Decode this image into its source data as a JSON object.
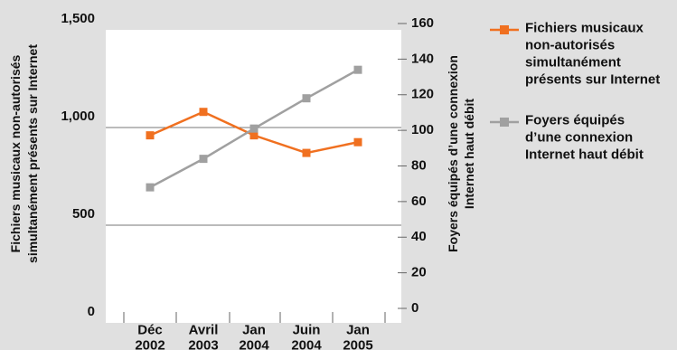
{
  "chart_data": {
    "type": "line",
    "categories": [
      [
        "Déc",
        "2002"
      ],
      [
        "Avril",
        "2003"
      ],
      [
        "Jan",
        "2004"
      ],
      [
        "Juin",
        "2004"
      ],
      [
        "Jan",
        "2005"
      ]
    ],
    "left_axis": {
      "title_lines": [
        "Fichiers musicaux non-autorisés",
        "simultanément présents sur Internet"
      ],
      "ticks": [
        0,
        500,
        1000,
        1500
      ],
      "tick_labels": [
        "0",
        "500",
        "1,000",
        "1,500"
      ],
      "ylim": [
        0,
        1500
      ]
    },
    "right_axis": {
      "title_lines": [
        "Foyers équipés d’une connexion",
        "Internet haut débit"
      ],
      "ticks": [
        0,
        20,
        40,
        60,
        80,
        100,
        120,
        140,
        160
      ],
      "tick_labels": [
        "0",
        "20",
        "40",
        "60",
        "80",
        "100",
        "120",
        "140",
        "160"
      ],
      "ylim": [
        0,
        160
      ]
    },
    "series": [
      {
        "name_lines": [
          "Fichiers musicaux",
          "non-autorisés",
          "simultanément",
          "présents sur Internet"
        ],
        "axis": "left",
        "color": "#f07020",
        "marker": "square",
        "values": [
          960,
          1080,
          960,
          870,
          925
        ]
      },
      {
        "name_lines": [
          "Foyers équipés",
          "d’une connexion",
          "Internet haut débit"
        ],
        "axis": "right",
        "color": "#a0a0a0",
        "marker": "square",
        "values": [
          68,
          84,
          101,
          118,
          134
        ]
      }
    ],
    "gridlines": [
      500,
      1000
    ],
    "legend_position": "right"
  }
}
